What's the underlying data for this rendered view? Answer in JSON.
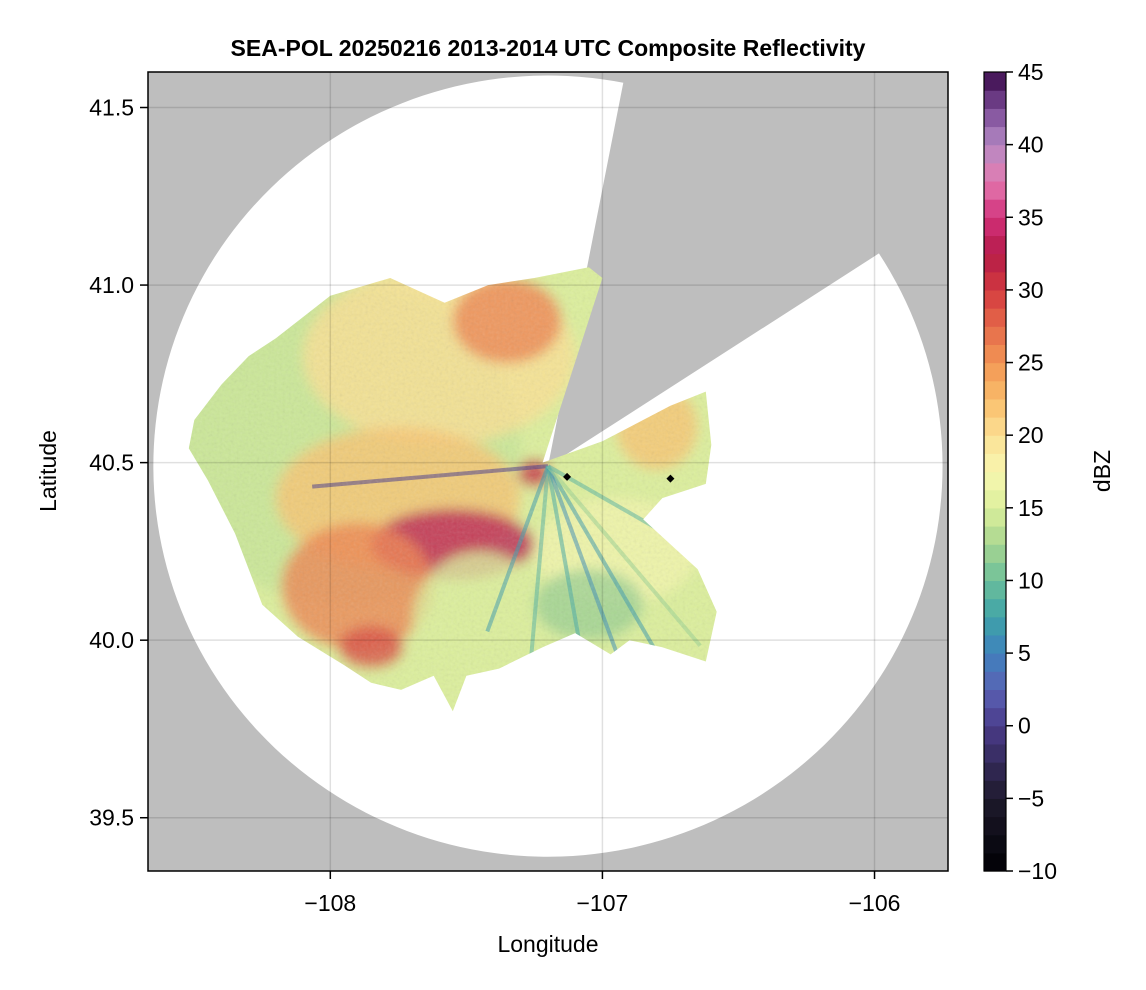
{
  "chart_data": {
    "type": "heatmap",
    "title": "SEA-POL 20250216 2013-2014 UTC Composite Reflectivity",
    "xlabel": "Longitude",
    "ylabel": "Latitude",
    "xlim": [
      -108.67,
      -105.73
    ],
    "ylim": [
      39.35,
      41.6
    ],
    "x_ticks": [
      -108,
      -107,
      -106
    ],
    "x_tick_labels": [
      "−108",
      "−107",
      "−106"
    ],
    "y_ticks": [
      39.5,
      40.0,
      40.5,
      41.0,
      41.5
    ],
    "y_tick_labels": [
      "39.5",
      "40.0",
      "40.5",
      "41.0",
      "41.5"
    ],
    "grid": true,
    "background_color": "#bebebe",
    "radar": {
      "center_lon": -107.2,
      "center_lat": 40.49,
      "max_range_lon_deg": 1.45,
      "max_range_lat_deg": 1.1,
      "blocked_azimuth_sectors_deg": [
        [
          11,
          57
        ]
      ]
    },
    "echo_regions": [
      {
        "region": "northwest",
        "lon_range": [
          -108.5,
          -107.2
        ],
        "lat_range": [
          40.25,
          41.05
        ],
        "dBZ_range": [
          10,
          28
        ]
      },
      {
        "region": "southwest core",
        "lon_range": [
          -107.9,
          -107.35
        ],
        "lat_range": [
          40.15,
          40.38
        ],
        "dBZ_range": [
          25,
          38
        ]
      },
      {
        "region": "south",
        "lon_range": [
          -108.0,
          -106.6
        ],
        "lat_range": [
          39.85,
          40.45
        ],
        "dBZ_range": [
          5,
          30
        ]
      },
      {
        "region": "east",
        "lon_range": [
          -107.2,
          -106.6
        ],
        "lat_range": [
          40.3,
          40.75
        ],
        "dBZ_range": [
          5,
          28
        ]
      }
    ],
    "markers": [
      {
        "lon": -107.13,
        "lat": 40.46,
        "shape": "diamond"
      },
      {
        "lon": -106.75,
        "lat": 40.455,
        "shape": "diamond"
      }
    ],
    "colorbar": {
      "label": "dBZ",
      "min": -10,
      "max": 45,
      "ticks": [
        -10,
        -5,
        0,
        5,
        10,
        15,
        20,
        25,
        30,
        35,
        40,
        45
      ],
      "tick_labels": [
        "−10",
        "−5",
        "0",
        "5",
        "10",
        "15",
        "20",
        "25",
        "30",
        "35",
        "40",
        "45"
      ],
      "colormap": [
        {
          "value": -10,
          "color": "#000004"
        },
        {
          "value": -5,
          "color": "#1e1a2c"
        },
        {
          "value": 0,
          "color": "#4a3b8a"
        },
        {
          "value": 2.5,
          "color": "#5a62b4"
        },
        {
          "value": 5,
          "color": "#3f82bd"
        },
        {
          "value": 7.5,
          "color": "#3fa3a8"
        },
        {
          "value": 10,
          "color": "#6cbf9a"
        },
        {
          "value": 12.5,
          "color": "#a8d690"
        },
        {
          "value": 15,
          "color": "#dcef9c"
        },
        {
          "value": 17.5,
          "color": "#f8f7b0"
        },
        {
          "value": 20,
          "color": "#fbe094"
        },
        {
          "value": 22.5,
          "color": "#f9bd6a"
        },
        {
          "value": 25,
          "color": "#f29655"
        },
        {
          "value": 27.5,
          "color": "#e56a4a"
        },
        {
          "value": 30,
          "color": "#d33a3f"
        },
        {
          "value": 32.5,
          "color": "#b41b48"
        },
        {
          "value": 35,
          "color": "#d2307a"
        },
        {
          "value": 37.5,
          "color": "#e37bb0"
        },
        {
          "value": 40,
          "color": "#b58ac4"
        },
        {
          "value": 42.5,
          "color": "#7a4a96"
        },
        {
          "value": 45,
          "color": "#3a0a4a"
        }
      ]
    }
  }
}
